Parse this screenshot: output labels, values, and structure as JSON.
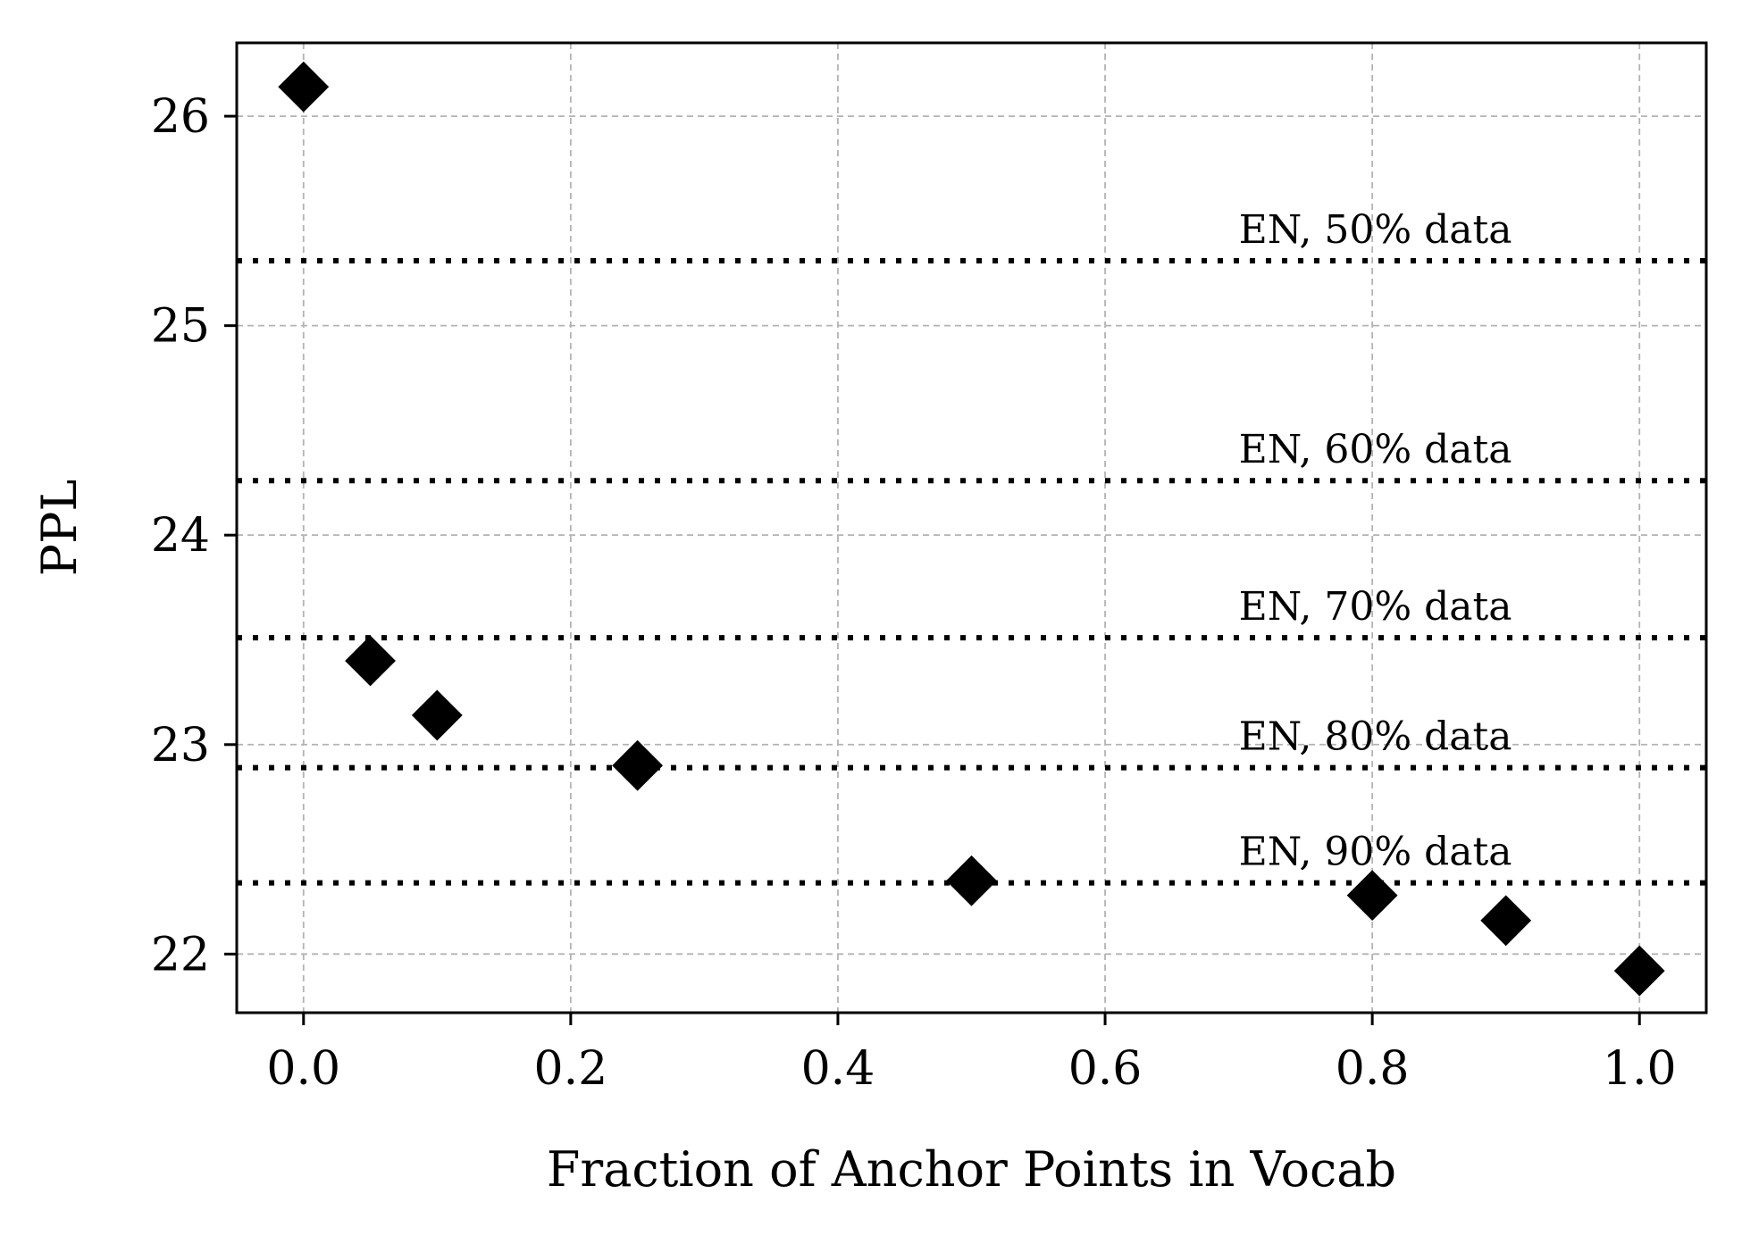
{
  "chart_data": {
    "type": "scatter",
    "title": "",
    "xlabel": "Fraction of Anchor Points in Vocab",
    "ylabel": "PPL",
    "xlim": [
      -0.05,
      1.05
    ],
    "ylim": [
      21.72,
      26.35
    ],
    "x_ticks": [
      0.0,
      0.2,
      0.4,
      0.6,
      0.8,
      1.0
    ],
    "x_tick_labels": [
      "0.0",
      "0.2",
      "0.4",
      "0.6",
      "0.8",
      "1.0"
    ],
    "y_ticks": [
      22,
      23,
      24,
      25,
      26
    ],
    "y_tick_labels": [
      "22",
      "23",
      "24",
      "25",
      "26"
    ],
    "grid": true,
    "marker": "diamond",
    "marker_color": "#000000",
    "series": [
      {
        "x": [
          0.0,
          0.05,
          0.1,
          0.25,
          0.5,
          0.8,
          0.9,
          1.0
        ],
        "y": [
          26.14,
          23.4,
          23.14,
          22.9,
          22.35,
          22.28,
          22.16,
          21.92
        ]
      }
    ],
    "reference_lines": [
      {
        "label": "EN, 50% data",
        "y": 25.31
      },
      {
        "label": "EN, 60% data",
        "y": 24.26
      },
      {
        "label": "EN, 70% data",
        "y": 23.51
      },
      {
        "label": "EN, 80% data",
        "y": 22.89
      },
      {
        "label": "EN, 90% data",
        "y": 22.34
      }
    ]
  }
}
